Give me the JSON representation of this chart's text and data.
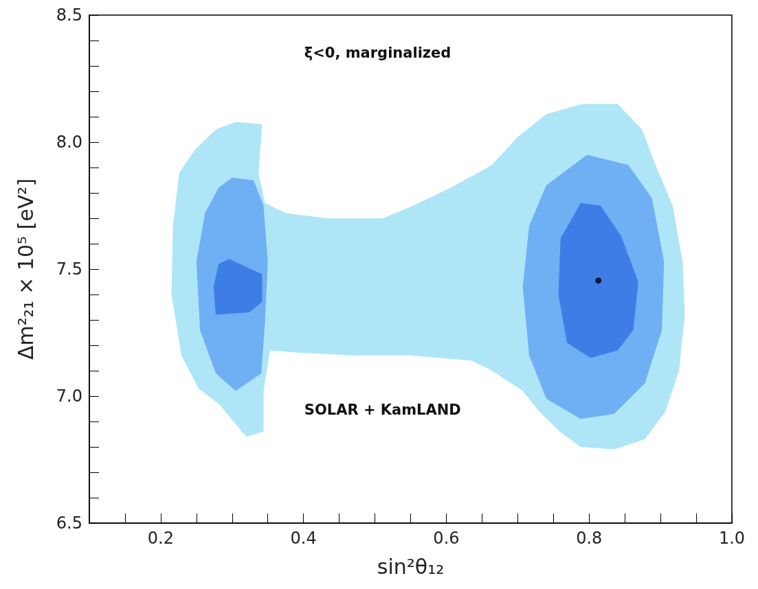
{
  "chart_data": {
    "type": "area",
    "xlabel": "sin²θ₁₂",
    "ylabel": "Δm²₂₁ × 10⁵ [eV²]",
    "annotations": [
      "ξ<0, marginalized",
      "SOLAR + KamLAND"
    ],
    "xlim": [
      0.1,
      1.0
    ],
    "ylim": [
      6.5,
      8.5
    ],
    "xticks": [
      {
        "value": 0.15,
        "label": null
      },
      {
        "value": 0.2,
        "label": "0.2"
      },
      {
        "value": 0.25,
        "label": null
      },
      {
        "value": 0.3,
        "label": null
      },
      {
        "value": 0.35,
        "label": null
      },
      {
        "value": 0.4,
        "label": "0.4"
      },
      {
        "value": 0.45,
        "label": null
      },
      {
        "value": 0.5,
        "label": null
      },
      {
        "value": 0.55,
        "label": null
      },
      {
        "value": 0.6,
        "label": "0.6"
      },
      {
        "value": 0.65,
        "label": null
      },
      {
        "value": 0.7,
        "label": null
      },
      {
        "value": 0.75,
        "label": null
      },
      {
        "value": 0.8,
        "label": "0.8"
      },
      {
        "value": 0.85,
        "label": null
      },
      {
        "value": 0.9,
        "label": null
      },
      {
        "value": 0.95,
        "label": null
      },
      {
        "value": 1.0,
        "label": "1.0"
      }
    ],
    "yticks": [
      {
        "value": 6.5,
        "label": "6.5"
      },
      {
        "value": 6.6,
        "label": null
      },
      {
        "value": 6.7,
        "label": null
      },
      {
        "value": 6.8,
        "label": null
      },
      {
        "value": 6.9,
        "label": null
      },
      {
        "value": 7.0,
        "label": "7.0"
      },
      {
        "value": 7.1,
        "label": null
      },
      {
        "value": 7.2,
        "label": null
      },
      {
        "value": 7.3,
        "label": null
      },
      {
        "value": 7.4,
        "label": null
      },
      {
        "value": 7.5,
        "label": "7.5"
      },
      {
        "value": 7.6,
        "label": null
      },
      {
        "value": 7.7,
        "label": null
      },
      {
        "value": 7.8,
        "label": null
      },
      {
        "value": 7.9,
        "label": null
      },
      {
        "value": 8.0,
        "label": "8.0"
      },
      {
        "value": 8.1,
        "label": null
      },
      {
        "value": 8.2,
        "label": null
      },
      {
        "value": 8.3,
        "label": null
      },
      {
        "value": 8.4,
        "label": null
      },
      {
        "value": 8.5,
        "label": "8.5"
      }
    ],
    "series": [
      {
        "color": "#aee6f8",
        "x": [
          0.277,
          0.305,
          0.342,
          0.337,
          0.346,
          0.375,
          0.434,
          0.511,
          0.554,
          0.606,
          0.664,
          0.7,
          0.74,
          0.79,
          0.84,
          0.874,
          0.893,
          0.917,
          0.931,
          0.934,
          0.926,
          0.907,
          0.878,
          0.835,
          0.788,
          0.759,
          0.73,
          0.707,
          0.664,
          0.635,
          0.549,
          0.472,
          0.396,
          0.353,
          0.344,
          0.344,
          0.32,
          0.302,
          0.281,
          0.253,
          0.229,
          0.215,
          0.217,
          0.226,
          0.248
        ],
        "values": [
          8.05,
          8.08,
          8.07,
          7.88,
          7.76,
          7.72,
          7.7,
          7.7,
          7.75,
          7.82,
          7.91,
          8.02,
          8.11,
          8.15,
          8.15,
          8.05,
          7.91,
          7.75,
          7.53,
          7.32,
          7.1,
          6.94,
          6.83,
          6.79,
          6.8,
          6.86,
          6.94,
          7.02,
          7.1,
          7.14,
          7.16,
          7.16,
          7.17,
          7.18,
          7.02,
          6.86,
          6.84,
          6.9,
          6.97,
          7.03,
          7.16,
          7.4,
          7.67,
          7.88,
          7.97
        ]
      },
      {
        "color": "#6fb0f5",
        "x": [
          0.3,
          0.33,
          0.344,
          0.35,
          0.346,
          0.341,
          0.305,
          0.277,
          0.255,
          0.25,
          0.262,
          0.281
        ],
        "values": [
          7.86,
          7.85,
          7.75,
          7.53,
          7.29,
          7.09,
          7.02,
          7.09,
          7.26,
          7.53,
          7.72,
          7.82
        ]
      },
      {
        "color": "#6fb0f5",
        "x": [
          0.797,
          0.855,
          0.888,
          0.905,
          0.902,
          0.878,
          0.835,
          0.788,
          0.74,
          0.716,
          0.707,
          0.716,
          0.74
        ],
        "values": [
          7.95,
          7.91,
          7.78,
          7.53,
          7.26,
          7.05,
          6.93,
          6.91,
          6.99,
          7.16,
          7.43,
          7.67,
          7.83
        ]
      },
      {
        "color": "#3d7ee6",
        "x": [
          0.281,
          0.296,
          0.342,
          0.342,
          0.324,
          0.277,
          0.274
        ],
        "values": [
          7.52,
          7.54,
          7.48,
          7.37,
          7.33,
          7.32,
          7.43
        ]
      },
      {
        "color": "#3d7ee6",
        "x": [
          0.788,
          0.816,
          0.845,
          0.869,
          0.862,
          0.84,
          0.802,
          0.769,
          0.757,
          0.76
        ],
        "values": [
          7.76,
          7.75,
          7.63,
          7.45,
          7.26,
          7.18,
          7.15,
          7.21,
          7.4,
          7.62
        ]
      },
      {
        "type": "scatter",
        "color": "#000000",
        "x": [
          0.813
        ],
        "values": [
          7.455
        ]
      }
    ]
  }
}
